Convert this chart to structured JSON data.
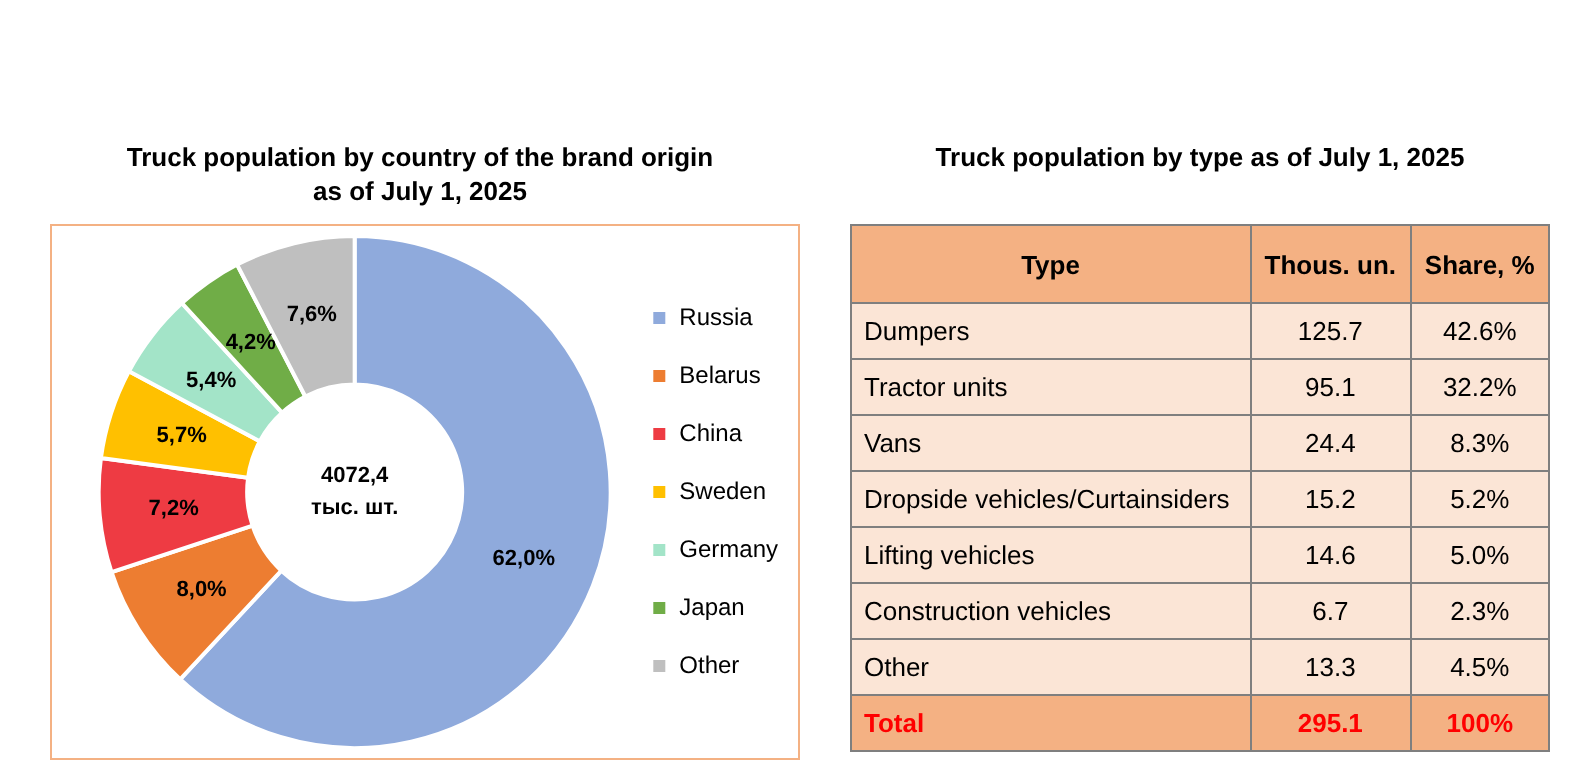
{
  "chart_data": [
    {
      "type": "donut",
      "title": "Truck population by country of the brand origin\nas of July 1, 2025",
      "categories": [
        "Russia",
        "Belarus",
        "China",
        "Sweden",
        "Germany",
        "Japan",
        "Other"
      ],
      "values": [
        62.0,
        8.0,
        7.2,
        5.7,
        5.4,
        4.2,
        7.6
      ],
      "value_labels": [
        "62,0%",
        "8,0%",
        "7,2%",
        "5,7%",
        "5,4%",
        "4,2%",
        "7,6%"
      ],
      "colors": [
        "#8faadc",
        "#ed7d31",
        "#ee3b43",
        "#ffc000",
        "#a3e4c8",
        "#70ad47",
        "#bfbfbf"
      ],
      "legend": "right",
      "annotations": [
        "4072,4\nтыс. шт."
      ]
    },
    {
      "type": "other",
      "title": "Truck population by type as of July 1, 2025",
      "annotations": [
        "Type",
        "Thous. un.",
        "Share, %",
        "Dumpers",
        "125.7",
        "42.6%",
        "Tractor units",
        "95.1",
        "32.2%",
        "Vans",
        "24.4",
        "8.3%",
        "Dropside vehicles/Curtainsiders",
        "15.2",
        "5.2%",
        "Lifting vehicles",
        "14.6",
        "5.0%",
        "Construction vehicles",
        "6.7",
        "2.3%",
        "Other",
        "13.3",
        "4.5%",
        "Total",
        "295.1",
        "100%"
      ]
    }
  ]
}
